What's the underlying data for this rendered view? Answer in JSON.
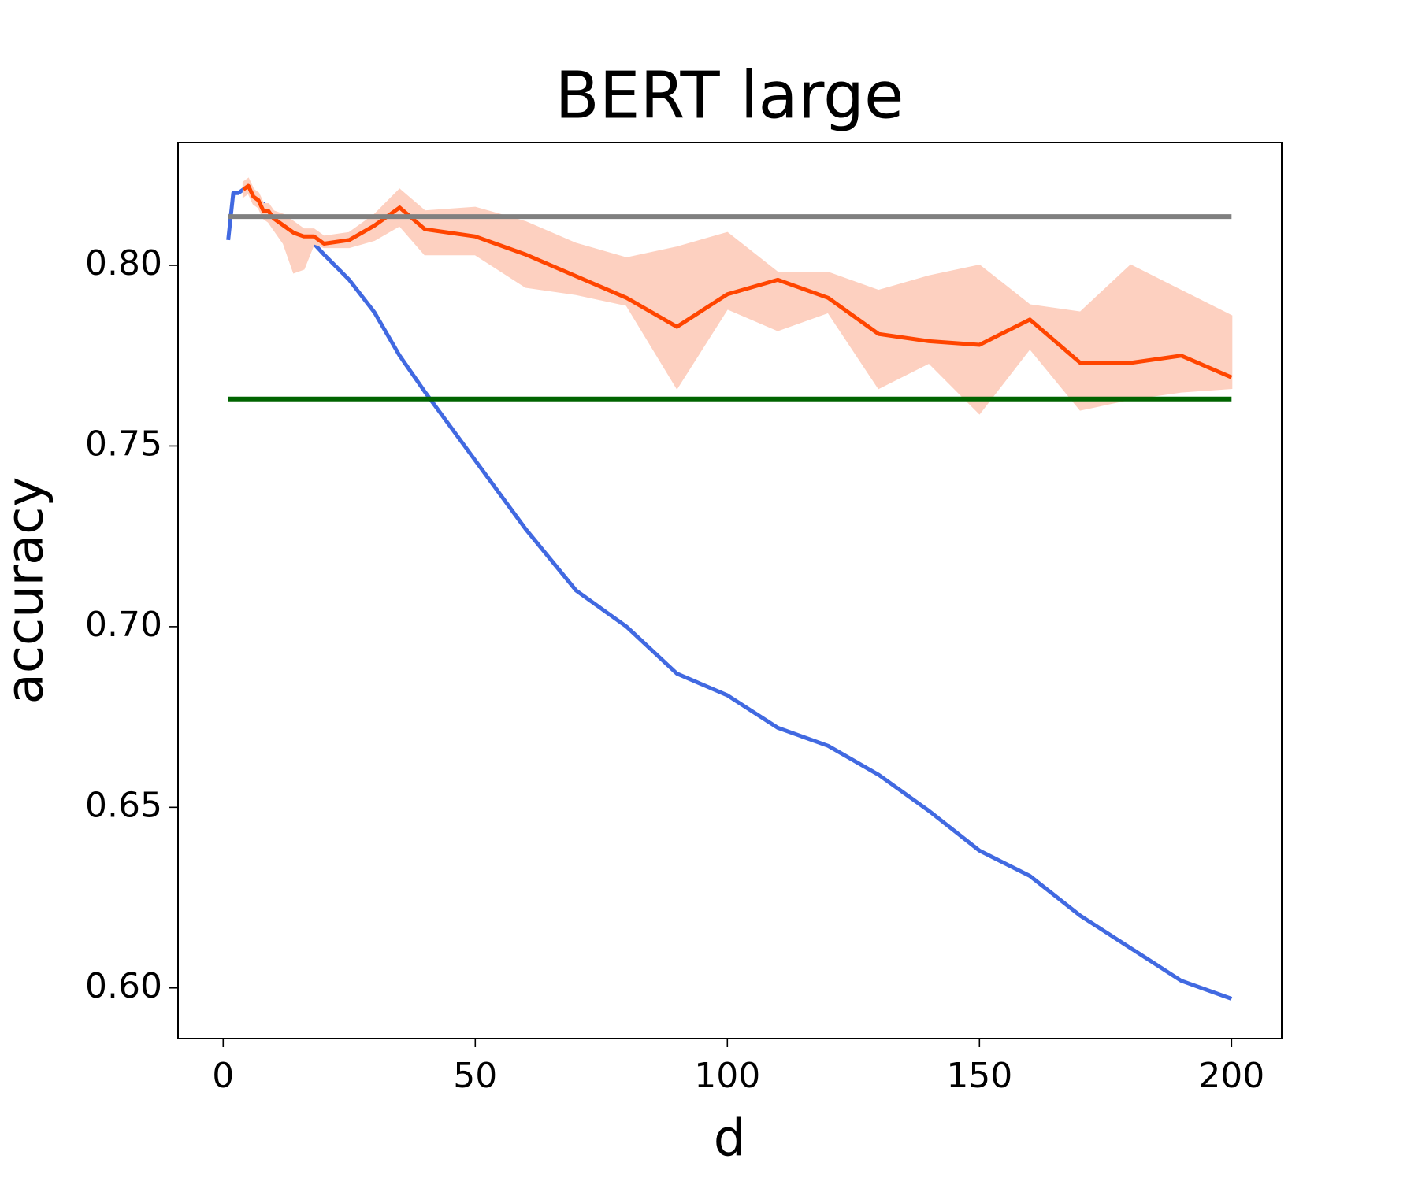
{
  "chart_data": {
    "type": "line",
    "title": "BERT large",
    "xlabel": "d",
    "ylabel": "accuracy",
    "x": [
      1,
      2,
      3,
      4,
      5,
      6,
      7,
      8,
      9,
      10,
      12,
      14,
      16,
      18,
      20,
      25,
      30,
      35,
      40,
      50,
      60,
      70,
      80,
      90,
      100,
      110,
      120,
      130,
      140,
      150,
      160,
      170,
      180,
      190,
      200
    ],
    "series": [
      {
        "color": "#4169e1",
        "values": [
          0.807,
          0.82,
          0.82,
          0.821,
          0.822,
          0.82,
          0.817,
          0.817,
          0.815,
          0.814,
          0.812,
          0.81,
          0.808,
          0.806,
          0.803,
          0.796,
          0.787,
          0.775,
          0.765,
          0.746,
          0.727,
          0.71,
          0.7,
          0.687,
          0.681,
          0.672,
          0.667,
          0.659,
          0.649,
          0.638,
          0.631,
          0.62,
          0.611,
          0.602,
          0.597
        ]
      },
      {
        "color": "#ff4500",
        "band_color": "#fdd0c0",
        "values": [
          null,
          null,
          null,
          0.821,
          0.822,
          0.819,
          0.818,
          0.815,
          0.815,
          0.813,
          0.811,
          0.809,
          0.808,
          0.808,
          0.806,
          0.807,
          0.811,
          0.816,
          0.81,
          0.808,
          0.803,
          0.797,
          0.791,
          0.783,
          0.792,
          0.796,
          0.791,
          0.781,
          0.779,
          0.778,
          0.785,
          0.773,
          0.773,
          0.775,
          0.769
        ],
        "lower": [
          null,
          null,
          null,
          0.819,
          0.82,
          0.817,
          0.816,
          0.813,
          0.812,
          0.81,
          0.806,
          0.798,
          0.799,
          0.806,
          0.805,
          0.805,
          0.807,
          0.811,
          0.803,
          0.803,
          0.794,
          0.792,
          0.789,
          0.766,
          0.788,
          0.782,
          0.787,
          0.766,
          0.773,
          0.759,
          0.777,
          0.76,
          0.763,
          0.765,
          0.766
        ],
        "upper": [
          null,
          null,
          null,
          0.823,
          0.824,
          0.821,
          0.82,
          0.817,
          0.817,
          0.815,
          0.814,
          0.812,
          0.81,
          0.81,
          0.808,
          0.809,
          0.814,
          0.821,
          0.815,
          0.816,
          0.812,
          0.806,
          0.802,
          0.805,
          0.809,
          0.798,
          0.798,
          0.793,
          0.797,
          0.8,
          0.789,
          0.787,
          0.8,
          0.793,
          0.786
        ]
      }
    ],
    "hlines": [
      {
        "value": 0.8135,
        "color": "#808080"
      },
      {
        "value": 0.763,
        "color": "#006400"
      }
    ],
    "xlim": [
      -8.95,
      209.95
    ],
    "xticks": [
      0,
      50,
      100,
      150,
      200
    ],
    "ylim": [
      0.586,
      0.834
    ],
    "yticks": [
      {
        "value": 0.6,
        "label": "0.60"
      },
      0.65,
      {
        "value": 0.7,
        "label": "0.70"
      },
      0.75,
      {
        "value": 0.8,
        "label": "0.80"
      }
    ]
  }
}
